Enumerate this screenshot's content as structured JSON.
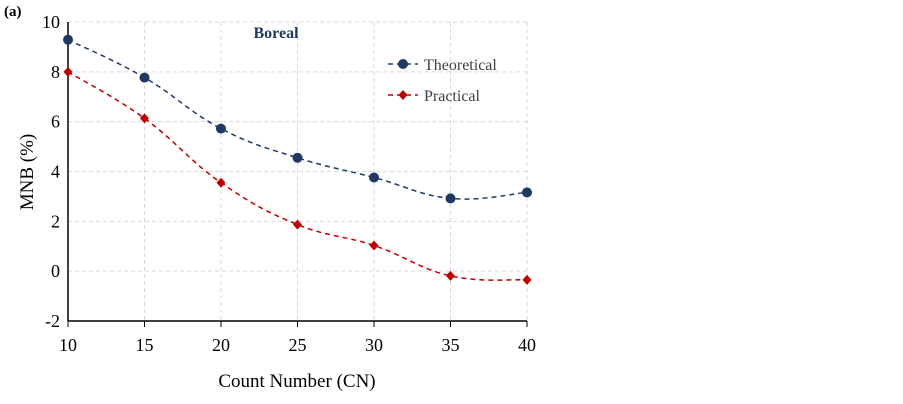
{
  "chart_data": {
    "type": "line",
    "panel_label": "(a)",
    "title": "Boreal",
    "xlabel": "Count Number (CN)",
    "ylabel": "MNB (%)",
    "x": [
      10,
      15,
      20,
      25,
      30,
      35,
      40
    ],
    "xlim": [
      10,
      40
    ],
    "ylim": [
      -2,
      10
    ],
    "xticks": [
      "10",
      "15",
      "20",
      "25",
      "30",
      "35",
      "40"
    ],
    "yticks": [
      "-2",
      "0",
      "2",
      "4",
      "6",
      "8",
      "10"
    ],
    "grid": true,
    "legend_position": "top-right",
    "series": [
      {
        "name": "Theoretical",
        "color": "#1f3864",
        "marker": "circle",
        "values": [
          9.29,
          7.77,
          5.72,
          4.55,
          3.76,
          2.92,
          3.16
        ]
      },
      {
        "name": "Practical",
        "color": "#c00000",
        "marker": "diamond",
        "values": [
          8.0,
          6.13,
          3.55,
          1.87,
          1.03,
          -0.19,
          -0.35
        ]
      }
    ]
  }
}
